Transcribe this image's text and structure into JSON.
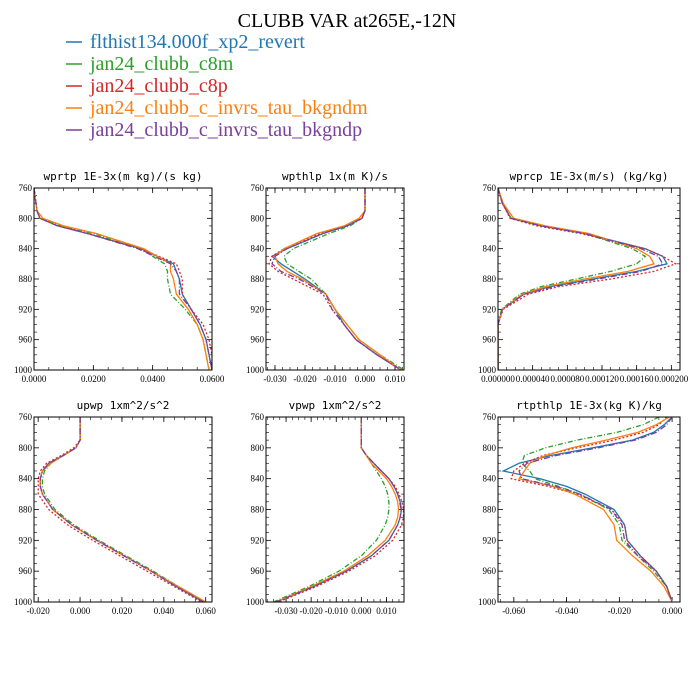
{
  "figure": {
    "title": "CLUBB VAR at265E,-12N"
  },
  "series_styles": [
    {
      "name": "flthist134.000f_xp2_revert",
      "color": "#1f77b4",
      "dash": ""
    },
    {
      "name": "jan24_clubb_c8m",
      "color": "#2ca02c",
      "dash": "5,2,1,2"
    },
    {
      "name": "jan24_clubb_c8p",
      "color": "#d62728",
      "dash": "2,2"
    },
    {
      "name": "jan24_clubb_c_invrs_tau_bkgndm",
      "color": "#ff7f0e",
      "dash": ""
    },
    {
      "name": "jan24_clubb_c_invrs_tau_bkgndp",
      "color": "#7b3f9e",
      "dash": "6,2,1,2"
    }
  ],
  "chart_data": [
    {
      "type": "line",
      "title": "wprtp  1E-3x(m kg)/(s kg)",
      "xlim": [
        0.0,
        0.06
      ],
      "ylim": [
        760,
        1000
      ],
      "y_inverted": true,
      "xticks": [
        0.0,
        0.02,
        0.04,
        0.06
      ],
      "xtick_labels": [
        "0.0000",
        "0.0200",
        "0.0400",
        "0.0600"
      ],
      "yticks": [
        760,
        800,
        840,
        880,
        920,
        960,
        1000
      ],
      "y": [
        760,
        790,
        800,
        810,
        820,
        840,
        860,
        870,
        880,
        900,
        920,
        940,
        960,
        980,
        1000
      ],
      "series": [
        {
          "name": "flthist134.000f_xp2_revert",
          "values": [
            0.0,
            0.001,
            0.002,
            0.008,
            0.018,
            0.036,
            0.047,
            0.048,
            0.049,
            0.05,
            0.053,
            0.056,
            0.058,
            0.059,
            0.06
          ]
        },
        {
          "name": "jan24_clubb_c8m",
          "values": [
            0.0,
            0.001,
            0.002,
            0.009,
            0.02,
            0.036,
            0.044,
            0.045,
            0.045,
            0.046,
            0.051,
            0.055,
            0.057,
            0.058,
            0.059
          ]
        },
        {
          "name": "jan24_clubb_c8p",
          "values": [
            0.0,
            0.001,
            0.002,
            0.008,
            0.018,
            0.036,
            0.048,
            0.049,
            0.05,
            0.05,
            0.053,
            0.057,
            0.059,
            0.06,
            0.06
          ]
        },
        {
          "name": "jan24_clubb_c_invrs_tau_bkgndm",
          "values": [
            0.0,
            0.001,
            0.003,
            0.01,
            0.021,
            0.037,
            0.046,
            0.046,
            0.047,
            0.048,
            0.052,
            0.055,
            0.057,
            0.058,
            0.059
          ]
        },
        {
          "name": "jan24_clubb_c_invrs_tau_bkgndp",
          "values": [
            0.0,
            0.001,
            0.002,
            0.008,
            0.018,
            0.035,
            0.046,
            0.048,
            0.049,
            0.049,
            0.053,
            0.056,
            0.058,
            0.059,
            0.06
          ]
        }
      ]
    },
    {
      "type": "line",
      "title": "wpthlp  1x(m K)/s",
      "xlim": [
        -0.033,
        0.013
      ],
      "ylim": [
        760,
        1000
      ],
      "y_inverted": true,
      "xticks": [
        -0.03,
        -0.02,
        -0.01,
        0.0,
        0.01
      ],
      "xtick_labels": [
        "-0.030",
        "-0.020",
        "-0.010",
        "0.000",
        "0.010"
      ],
      "yticks": [
        760,
        800,
        840,
        880,
        920,
        960,
        1000
      ],
      "y": [
        760,
        790,
        800,
        810,
        820,
        840,
        850,
        860,
        870,
        880,
        900,
        920,
        940,
        960,
        980,
        1000
      ],
      "series": [
        {
          "name": "flthist134.000f_xp2_revert",
          "values": [
            0.0,
            0.0,
            -0.001,
            -0.006,
            -0.014,
            -0.026,
            -0.031,
            -0.028,
            -0.024,
            -0.02,
            -0.013,
            -0.01,
            -0.007,
            -0.003,
            0.004,
            0.012
          ]
        },
        {
          "name": "jan24_clubb_c8m",
          "values": [
            0.0,
            0.0,
            -0.001,
            -0.005,
            -0.012,
            -0.024,
            -0.027,
            -0.026,
            -0.022,
            -0.018,
            -0.013,
            -0.01,
            -0.006,
            -0.002,
            0.005,
            0.013
          ]
        },
        {
          "name": "jan24_clubb_c8p",
          "values": [
            0.0,
            0.0,
            -0.001,
            -0.006,
            -0.015,
            -0.027,
            -0.031,
            -0.032,
            -0.029,
            -0.024,
            -0.014,
            -0.011,
            -0.007,
            -0.003,
            0.004,
            0.012
          ]
        },
        {
          "name": "jan24_clubb_c_invrs_tau_bkgndm",
          "values": [
            0.0,
            0.0,
            -0.002,
            -0.007,
            -0.016,
            -0.027,
            -0.03,
            -0.029,
            -0.026,
            -0.021,
            -0.013,
            -0.01,
            -0.006,
            -0.002,
            0.005,
            0.012
          ]
        },
        {
          "name": "jan24_clubb_c_invrs_tau_bkgndp",
          "values": [
            0.0,
            0.0,
            -0.001,
            -0.006,
            -0.014,
            -0.026,
            -0.03,
            -0.031,
            -0.028,
            -0.022,
            -0.013,
            -0.011,
            -0.007,
            -0.003,
            0.004,
            0.012
          ]
        }
      ]
    },
    {
      "type": "line",
      "title": "wprcp  1E-3x(m/s) (kg/kg)",
      "xlim": [
        0.0,
        0.00021
      ],
      "ylim": [
        760,
        1000
      ],
      "y_inverted": true,
      "xticks": [
        0.0,
        4e-05,
        8e-05,
        0.00012,
        0.00016,
        0.0002
      ],
      "xtick_labels": [
        "0.000000",
        "0.000040",
        "0.000080",
        "0.000120",
        "0.000160",
        "0.000200"
      ],
      "yticks": [
        760,
        800,
        840,
        880,
        920,
        960,
        1000
      ],
      "y": [
        760,
        780,
        800,
        810,
        820,
        840,
        850,
        860,
        870,
        880,
        890,
        900,
        920,
        940,
        960,
        980,
        1000
      ],
      "series": [
        {
          "name": "flthist134.000f_xp2_revert",
          "values": [
            0.0,
            5e-06,
            1.5e-05,
            5e-05,
            0.0001,
            0.00017,
            0.00019,
            0.000195,
            0.00016,
            0.00011,
            6e-05,
            3e-05,
            5e-06,
            0.0,
            0.0,
            0.0,
            0.0
          ]
        },
        {
          "name": "jan24_clubb_c8m",
          "values": [
            0.0,
            5e-06,
            1.5e-05,
            5e-05,
            0.0001,
            0.000155,
            0.00017,
            0.00016,
            0.00013,
            9e-05,
            5e-05,
            2.5e-05,
            4e-06,
            0.0,
            0.0,
            0.0,
            0.0
          ]
        },
        {
          "name": "jan24_clubb_c8p",
          "values": [
            0.0,
            5e-06,
            1.4e-05,
            4.5e-05,
            9.5e-05,
            0.00017,
            0.00019,
            0.000205,
            0.00018,
            0.00013,
            7e-05,
            3.5e-05,
            6e-06,
            0.0,
            0.0,
            0.0,
            0.0
          ]
        },
        {
          "name": "jan24_clubb_c_invrs_tau_bkgndm",
          "values": [
            0.0,
            6e-06,
            1.8e-05,
            5.5e-05,
            0.000105,
            0.00016,
            0.000175,
            0.00018,
            0.00015,
            0.0001,
            5.5e-05,
            2.8e-05,
            5e-06,
            0.0,
            0.0,
            0.0,
            0.0
          ]
        },
        {
          "name": "jan24_clubb_c_invrs_tau_bkgndp",
          "values": [
            0.0,
            5e-06,
            1.5e-05,
            5e-05,
            0.0001,
            0.000165,
            0.000185,
            0.00019,
            0.000165,
            0.000115,
            6.5e-05,
            3e-05,
            5e-06,
            0.0,
            0.0,
            0.0,
            0.0
          ]
        }
      ]
    },
    {
      "type": "line",
      "title": "upwp  1xm^2/s^2",
      "xlim": [
        -0.022,
        0.063
      ],
      "ylim": [
        760,
        1000
      ],
      "y_inverted": true,
      "xticks": [
        -0.02,
        0.0,
        0.02,
        0.04,
        0.06
      ],
      "xtick_labels": [
        "-0.020",
        "0.000",
        "0.020",
        "0.040",
        "0.060"
      ],
      "yticks": [
        760,
        800,
        840,
        880,
        920,
        960,
        1000
      ],
      "y": [
        760,
        790,
        800,
        810,
        820,
        830,
        840,
        850,
        860,
        880,
        900,
        920,
        940,
        960,
        980,
        1000
      ],
      "series": [
        {
          "name": "flthist134.000f_xp2_revert",
          "values": [
            0.0,
            0.0,
            -0.002,
            -0.008,
            -0.015,
            -0.018,
            -0.019,
            -0.019,
            -0.018,
            -0.013,
            -0.004,
            0.008,
            0.021,
            0.034,
            0.046,
            0.059
          ]
        },
        {
          "name": "jan24_clubb_c8m",
          "values": [
            0.0,
            0.0,
            -0.002,
            -0.008,
            -0.014,
            -0.017,
            -0.018,
            -0.018,
            -0.017,
            -0.012,
            -0.003,
            0.009,
            0.022,
            0.035,
            0.047,
            0.06
          ]
        },
        {
          "name": "jan24_clubb_c8p",
          "values": [
            0.0,
            0.0,
            -0.003,
            -0.009,
            -0.016,
            -0.019,
            -0.02,
            -0.02,
            -0.02,
            -0.015,
            -0.006,
            0.006,
            0.019,
            0.032,
            0.045,
            0.058
          ]
        },
        {
          "name": "jan24_clubb_c_invrs_tau_bkgndm",
          "values": [
            0.0,
            0.0,
            -0.002,
            -0.008,
            -0.014,
            -0.018,
            -0.019,
            -0.019,
            -0.018,
            -0.013,
            -0.004,
            0.008,
            0.021,
            0.034,
            0.047,
            0.06
          ]
        },
        {
          "name": "jan24_clubb_c_invrs_tau_bkgndp",
          "values": [
            0.0,
            0.0,
            -0.002,
            -0.008,
            -0.015,
            -0.018,
            -0.019,
            -0.019,
            -0.018,
            -0.013,
            -0.004,
            0.008,
            0.021,
            0.034,
            0.046,
            0.059
          ]
        }
      ]
    },
    {
      "type": "line",
      "title": "vpwp  1xm^2/s^2",
      "xlim": [
        -0.038,
        0.017
      ],
      "ylim": [
        760,
        1000
      ],
      "y_inverted": true,
      "xticks": [
        -0.03,
        -0.02,
        -0.01,
        0.0,
        0.01
      ],
      "xtick_labels": [
        "-0.030",
        "-0.020",
        "-0.010",
        "0.000",
        "0.010"
      ],
      "yticks": [
        760,
        800,
        840,
        880,
        920,
        960,
        1000
      ],
      "y": [
        760,
        800,
        810,
        820,
        830,
        840,
        850,
        860,
        870,
        880,
        890,
        900,
        920,
        940,
        960,
        980,
        1000
      ],
      "series": [
        {
          "name": "flthist134.000f_xp2_revert",
          "values": [
            0.0,
            0.0,
            0.002,
            0.005,
            0.008,
            0.011,
            0.013,
            0.0145,
            0.0155,
            0.016,
            0.0155,
            0.0145,
            0.011,
            0.004,
            -0.006,
            -0.019,
            -0.034
          ]
        },
        {
          "name": "jan24_clubb_c8m",
          "values": [
            0.0,
            0.0,
            0.002,
            0.004,
            0.006,
            0.008,
            0.0095,
            0.0105,
            0.011,
            0.011,
            0.0105,
            0.0095,
            0.006,
            0.0,
            -0.009,
            -0.021,
            -0.035
          ]
        },
        {
          "name": "jan24_clubb_c8p",
          "values": [
            0.0,
            0.0,
            0.002,
            0.005,
            0.008,
            0.011,
            0.0135,
            0.015,
            0.0162,
            0.0168,
            0.0168,
            0.016,
            0.0125,
            0.0055,
            -0.005,
            -0.018,
            -0.033
          ]
        },
        {
          "name": "jan24_clubb_c_invrs_tau_bkgndm",
          "values": [
            0.0,
            0.0,
            0.002,
            0.004,
            0.007,
            0.01,
            0.012,
            0.0135,
            0.0145,
            0.0148,
            0.0145,
            0.0135,
            0.0095,
            0.0025,
            -0.007,
            -0.02,
            -0.034
          ]
        },
        {
          "name": "jan24_clubb_c_invrs_tau_bkgndp",
          "values": [
            0.0,
            0.0,
            0.002,
            0.005,
            0.008,
            0.011,
            0.013,
            0.0145,
            0.0153,
            0.0158,
            0.0155,
            0.0145,
            0.011,
            0.004,
            -0.006,
            -0.019,
            -0.034
          ]
        }
      ]
    },
    {
      "type": "line",
      "title": "rtpthlp  1E-3x(kg K)/kg",
      "xlim": [
        -0.066,
        0.003
      ],
      "ylim": [
        760,
        1000
      ],
      "y_inverted": true,
      "xticks": [
        -0.06,
        -0.04,
        -0.02,
        0.0
      ],
      "xtick_labels": [
        "-0.060",
        "-0.040",
        "-0.020",
        "0.000"
      ],
      "yticks": [
        760,
        800,
        840,
        880,
        920,
        960,
        1000
      ],
      "y": [
        760,
        770,
        780,
        790,
        800,
        810,
        820,
        830,
        840,
        850,
        860,
        880,
        900,
        920,
        940,
        960,
        980,
        1000
      ],
      "series": [
        {
          "name": "flthist134.000f_xp2_revert",
          "values": [
            0.0,
            -0.003,
            -0.007,
            -0.015,
            -0.03,
            -0.046,
            -0.058,
            -0.064,
            -0.05,
            -0.04,
            -0.033,
            -0.022,
            -0.018,
            -0.017,
            -0.012,
            -0.006,
            -0.002,
            0.0
          ]
        },
        {
          "name": "jan24_clubb_c8m",
          "values": [
            -0.005,
            -0.011,
            -0.021,
            -0.036,
            -0.048,
            -0.056,
            -0.057,
            -0.054,
            -0.052,
            -0.043,
            -0.035,
            -0.024,
            -0.02,
            -0.019,
            -0.013,
            -0.007,
            -0.002,
            0.0
          ]
        },
        {
          "name": "jan24_clubb_c8p",
          "values": [
            -0.002,
            -0.005,
            -0.011,
            -0.022,
            -0.036,
            -0.049,
            -0.056,
            -0.06,
            -0.061,
            -0.047,
            -0.036,
            -0.023,
            -0.018,
            -0.017,
            -0.012,
            -0.006,
            -0.002,
            0.0
          ]
        },
        {
          "name": "jan24_clubb_c_invrs_tau_bkgndm",
          "values": [
            -0.001,
            -0.006,
            -0.013,
            -0.025,
            -0.038,
            -0.048,
            -0.054,
            -0.056,
            -0.058,
            -0.045,
            -0.037,
            -0.026,
            -0.022,
            -0.021,
            -0.015,
            -0.008,
            -0.003,
            0.0
          ]
        },
        {
          "name": "jan24_clubb_c_invrs_tau_bkgndp",
          "values": [
            0.0,
            -0.002,
            -0.006,
            -0.014,
            -0.028,
            -0.044,
            -0.055,
            -0.058,
            -0.057,
            -0.044,
            -0.035,
            -0.023,
            -0.019,
            -0.018,
            -0.013,
            -0.006,
            -0.002,
            0.0
          ]
        }
      ]
    }
  ]
}
